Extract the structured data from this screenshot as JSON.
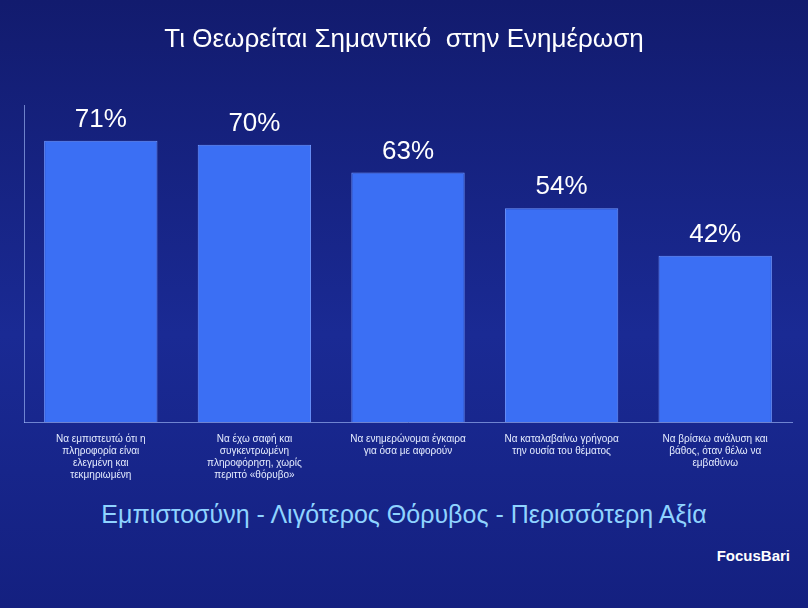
{
  "chart_data": {
    "type": "bar",
    "title": "Τι Θεωρείται Σημαντικό  στην Ενημέρωση",
    "categories": [
      "Να εμπιστευτώ ότι η πληροφορία είναι ελεγμένη και τεκμηριωμένη",
      "Να έχω σαφή και συγκεντρωμένη πληροφόρηση, χωρίς περιττό «θόρυβο»",
      "Να ενημερώνομαι έγκαιρα για όσα με αφορούν",
      "Να καταλαβαίνω γρήγορα την ουσία του θέματος",
      "Να βρίσκω ανάλυση και βάθος, όταν θέλω να εμβαθύνω"
    ],
    "values": [
      71,
      70,
      63,
      54,
      42
    ],
    "value_labels": [
      "71%",
      "70%",
      "63%",
      "54%",
      "42%"
    ],
    "color": "#3b6ff4",
    "ylim": [
      0,
      80
    ],
    "yticks": [],
    "grid": false,
    "data_labels": true,
    "tick_labels": "x"
  },
  "footer": {
    "tagline": "Εμπιστοσύνη - Λιγότερος Θόρυβος - Περισσότερη Αξία",
    "brand": "FocusBari"
  }
}
